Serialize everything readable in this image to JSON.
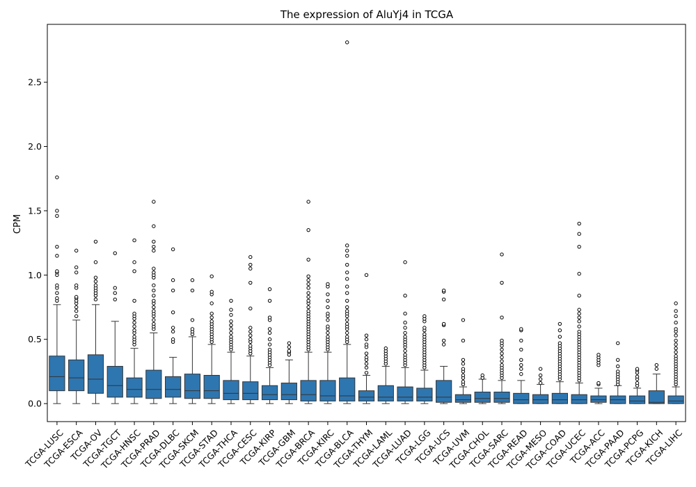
{
  "chart_data": {
    "type": "box",
    "title": "The expression of AluYj4 in TCGA",
    "xlabel": "",
    "ylabel": "CPM",
    "ylim": [
      -0.14,
      2.95
    ],
    "yticks": [
      0.0,
      0.5,
      1.0,
      1.5,
      2.0,
      2.5
    ],
    "ytick_labels": [
      "0.0",
      "0.5",
      "1.0",
      "1.5",
      "2.0",
      "2.5"
    ],
    "grid": false,
    "box_color": "#2e76b0",
    "line_color": "#333333",
    "categories": [
      "TCGA-LUSC",
      "TCGA-ESCA",
      "TCGA-OV",
      "TCGA-TGCT",
      "TCGA-HNSC",
      "TCGA-PRAD",
      "TCGA-DLBC",
      "TCGA-SKCM",
      "TCGA-STAD",
      "TCGA-THCA",
      "TCGA-CESC",
      "TCGA-KIRP",
      "TCGA-GBM",
      "TCGA-BRCA",
      "TCGA-KIRC",
      "TCGA-BLCA",
      "TCGA-THYM",
      "TCGA-LAML",
      "TCGA-LUAD",
      "TCGA-LGG",
      "TCGA-UCS",
      "TCGA-UVM",
      "TCGA-CHOL",
      "TCGA-SARC",
      "TCGA-READ",
      "TCGA-MESO",
      "TCGA-COAD",
      "TCGA-UCEC",
      "TCGA-ACC",
      "TCGA-PAAD",
      "TCGA-PCPG",
      "TCGA-KICH",
      "TCGA-LIHC"
    ],
    "boxes": [
      {
        "whislo": 0.0,
        "q1": 0.1,
        "med": 0.21,
        "q3": 0.37,
        "whishi": 0.77,
        "fliers": [
          0.8,
          0.82,
          0.86,
          0.9,
          0.92,
          1.0,
          1.02,
          1.03,
          1.15,
          1.22,
          1.46,
          1.5,
          1.76
        ]
      },
      {
        "whislo": 0.0,
        "q1": 0.1,
        "med": 0.2,
        "q3": 0.34,
        "whishi": 0.65,
        "fliers": [
          0.68,
          0.72,
          0.75,
          0.78,
          0.8,
          0.82,
          0.83,
          0.9,
          0.92,
          1.02,
          1.06,
          1.19
        ]
      },
      {
        "whislo": 0.0,
        "q1": 0.08,
        "med": 0.19,
        "q3": 0.38,
        "whishi": 0.77,
        "fliers": [
          0.81,
          0.84,
          0.86,
          0.88,
          0.9,
          0.92,
          0.95,
          0.98,
          1.1,
          1.26
        ]
      },
      {
        "whislo": 0.0,
        "q1": 0.05,
        "med": 0.14,
        "q3": 0.29,
        "whishi": 0.64,
        "fliers": [
          0.81,
          0.86,
          0.9,
          1.17
        ]
      },
      {
        "whislo": 0.0,
        "q1": 0.05,
        "med": 0.11,
        "q3": 0.2,
        "whishi": 0.43,
        "fliers": [
          0.46,
          0.48,
          0.5,
          0.52,
          0.55,
          0.57,
          0.6,
          0.63,
          0.66,
          0.68,
          0.7,
          0.8,
          1.03,
          1.1,
          1.27
        ]
      },
      {
        "whislo": 0.0,
        "q1": 0.04,
        "med": 0.11,
        "q3": 0.26,
        "whishi": 0.55,
        "fliers": [
          0.58,
          0.6,
          0.62,
          0.65,
          0.68,
          0.7,
          0.72,
          0.75,
          0.78,
          0.8,
          0.84,
          0.88,
          0.92,
          0.98,
          1.0,
          1.02,
          1.05,
          1.19,
          1.22,
          1.26,
          1.38,
          1.57
        ]
      },
      {
        "whislo": 0.0,
        "q1": 0.05,
        "med": 0.11,
        "q3": 0.21,
        "whishi": 0.36,
        "fliers": [
          0.48,
          0.5,
          0.56,
          0.59,
          0.71,
          0.88,
          0.96,
          1.2
        ]
      },
      {
        "whislo": 0.0,
        "q1": 0.04,
        "med": 0.1,
        "q3": 0.23,
        "whishi": 0.52,
        "fliers": [
          0.54,
          0.56,
          0.58,
          0.65,
          0.88,
          0.96
        ]
      },
      {
        "whislo": 0.0,
        "q1": 0.04,
        "med": 0.1,
        "q3": 0.22,
        "whishi": 0.46,
        "fliers": [
          0.48,
          0.5,
          0.52,
          0.54,
          0.56,
          0.58,
          0.6,
          0.62,
          0.64,
          0.67,
          0.7,
          0.78,
          0.85,
          0.87,
          0.99
        ]
      },
      {
        "whislo": 0.0,
        "q1": 0.03,
        "med": 0.08,
        "q3": 0.18,
        "whishi": 0.4,
        "fliers": [
          0.42,
          0.44,
          0.46,
          0.48,
          0.5,
          0.52,
          0.55,
          0.58,
          0.61,
          0.64,
          0.69,
          0.73,
          0.8
        ]
      },
      {
        "whislo": 0.0,
        "q1": 0.03,
        "med": 0.08,
        "q3": 0.17,
        "whishi": 0.37,
        "fliers": [
          0.39,
          0.41,
          0.43,
          0.45,
          0.48,
          0.5,
          0.53,
          0.56,
          0.59,
          0.74,
          0.94,
          1.05,
          1.08,
          1.14
        ]
      },
      {
        "whislo": 0.0,
        "q1": 0.03,
        "med": 0.07,
        "q3": 0.14,
        "whishi": 0.28,
        "fliers": [
          0.3,
          0.32,
          0.34,
          0.36,
          0.38,
          0.4,
          0.42,
          0.46,
          0.5,
          0.55,
          0.58,
          0.65,
          0.67,
          0.8,
          0.89
        ]
      },
      {
        "whislo": 0.0,
        "q1": 0.03,
        "med": 0.07,
        "q3": 0.16,
        "whishi": 0.34,
        "fliers": [
          0.38,
          0.4,
          0.41,
          0.44,
          0.47
        ]
      },
      {
        "whislo": 0.0,
        "q1": 0.02,
        "med": 0.07,
        "q3": 0.18,
        "whishi": 0.4,
        "fliers": [
          0.42,
          0.44,
          0.46,
          0.48,
          0.5,
          0.52,
          0.54,
          0.56,
          0.58,
          0.6,
          0.62,
          0.64,
          0.66,
          0.68,
          0.7,
          0.72,
          0.75,
          0.78,
          0.8,
          0.83,
          0.86,
          0.9,
          0.93,
          0.96,
          0.99,
          1.12,
          1.35,
          1.57
        ]
      },
      {
        "whislo": 0.0,
        "q1": 0.02,
        "med": 0.06,
        "q3": 0.18,
        "whishi": 0.4,
        "fliers": [
          0.42,
          0.44,
          0.46,
          0.48,
          0.5,
          0.52,
          0.55,
          0.58,
          0.6,
          0.65,
          0.68,
          0.7,
          0.75,
          0.8,
          0.85,
          0.91,
          0.93
        ]
      },
      {
        "whislo": 0.0,
        "q1": 0.02,
        "med": 0.06,
        "q3": 0.2,
        "whishi": 0.46,
        "fliers": [
          0.48,
          0.5,
          0.52,
          0.55,
          0.58,
          0.6,
          0.62,
          0.65,
          0.68,
          0.7,
          0.72,
          0.75,
          0.8,
          0.86,
          0.91,
          0.97,
          1.02,
          1.08,
          1.15,
          1.19,
          1.23,
          2.81
        ]
      },
      {
        "whislo": 0.0,
        "q1": 0.02,
        "med": 0.05,
        "q3": 0.1,
        "whishi": 0.22,
        "fliers": [
          0.24,
          0.28,
          0.31,
          0.34,
          0.36,
          0.39,
          0.44,
          0.46,
          0.5,
          0.53,
          1.0
        ]
      },
      {
        "whislo": 0.0,
        "q1": 0.02,
        "med": 0.05,
        "q3": 0.14,
        "whishi": 0.29,
        "fliers": [
          0.31,
          0.33,
          0.35,
          0.37,
          0.39,
          0.41,
          0.43
        ]
      },
      {
        "whislo": 0.0,
        "q1": 0.02,
        "med": 0.05,
        "q3": 0.13,
        "whishi": 0.28,
        "fliers": [
          0.3,
          0.32,
          0.34,
          0.36,
          0.38,
          0.41,
          0.44,
          0.46,
          0.48,
          0.5,
          0.52,
          0.55,
          0.59,
          0.63,
          0.7,
          0.84,
          1.1
        ]
      },
      {
        "whislo": 0.0,
        "q1": 0.02,
        "med": 0.05,
        "q3": 0.12,
        "whishi": 0.26,
        "fliers": [
          0.28,
          0.3,
          0.32,
          0.34,
          0.36,
          0.38,
          0.4,
          0.42,
          0.44,
          0.46,
          0.48,
          0.5,
          0.52,
          0.54,
          0.57,
          0.59,
          0.64,
          0.66,
          0.68
        ]
      },
      {
        "whislo": 0.0,
        "q1": 0.01,
        "med": 0.05,
        "q3": 0.18,
        "whishi": 0.29,
        "fliers": [
          0.46,
          0.49,
          0.61,
          0.62,
          0.81,
          0.87,
          0.88
        ]
      },
      {
        "whislo": 0.0,
        "q1": 0.01,
        "med": 0.03,
        "q3": 0.07,
        "whishi": 0.13,
        "fliers": [
          0.15,
          0.17,
          0.2,
          0.22,
          0.25,
          0.27,
          0.31,
          0.34,
          0.49,
          0.65
        ]
      },
      {
        "whislo": 0.0,
        "q1": 0.01,
        "med": 0.04,
        "q3": 0.09,
        "whishi": 0.19,
        "fliers": [
          0.2,
          0.22
        ]
      },
      {
        "whislo": 0.0,
        "q1": 0.01,
        "med": 0.04,
        "q3": 0.09,
        "whishi": 0.18,
        "fliers": [
          0.2,
          0.22,
          0.24,
          0.26,
          0.28,
          0.3,
          0.33,
          0.36,
          0.39,
          0.42,
          0.45,
          0.47,
          0.49,
          0.67,
          0.94,
          1.16
        ]
      },
      {
        "whislo": 0.0,
        "q1": 0.0,
        "med": 0.03,
        "q3": 0.08,
        "whishi": 0.18,
        "fliers": [
          0.23,
          0.27,
          0.3,
          0.34,
          0.42,
          0.49,
          0.57,
          0.58
        ]
      },
      {
        "whislo": 0.0,
        "q1": 0.0,
        "med": 0.03,
        "q3": 0.07,
        "whishi": 0.15,
        "fliers": [
          0.16,
          0.19,
          0.22,
          0.27
        ]
      },
      {
        "whislo": 0.0,
        "q1": 0.0,
        "med": 0.03,
        "q3": 0.08,
        "whishi": 0.17,
        "fliers": [
          0.19,
          0.21,
          0.23,
          0.25,
          0.27,
          0.29,
          0.31,
          0.33,
          0.35,
          0.37,
          0.39,
          0.41,
          0.43,
          0.45,
          0.47,
          0.52,
          0.57,
          0.62
        ]
      },
      {
        "whislo": 0.0,
        "q1": 0.0,
        "med": 0.03,
        "q3": 0.07,
        "whishi": 0.16,
        "fliers": [
          0.18,
          0.2,
          0.22,
          0.24,
          0.26,
          0.28,
          0.3,
          0.32,
          0.34,
          0.36,
          0.38,
          0.4,
          0.42,
          0.44,
          0.46,
          0.48,
          0.5,
          0.52,
          0.54,
          0.56,
          0.6,
          0.64,
          0.67,
          0.7,
          0.73,
          0.84,
          1.01,
          1.22,
          1.32,
          1.4
        ]
      },
      {
        "whislo": 0.0,
        "q1": 0.01,
        "med": 0.03,
        "q3": 0.06,
        "whishi": 0.12,
        "fliers": [
          0.15,
          0.16,
          0.3,
          0.32,
          0.34,
          0.36,
          0.38
        ]
      },
      {
        "whislo": 0.0,
        "q1": 0.0,
        "med": 0.03,
        "q3": 0.06,
        "whishi": 0.14,
        "fliers": [
          0.15,
          0.17,
          0.19,
          0.21,
          0.23,
          0.25,
          0.29,
          0.34,
          0.47
        ]
      },
      {
        "whislo": 0.0,
        "q1": 0.0,
        "med": 0.02,
        "q3": 0.06,
        "whishi": 0.12,
        "fliers": [
          0.14,
          0.16,
          0.19,
          0.21,
          0.24,
          0.26,
          0.27
        ]
      },
      {
        "whislo": 0.0,
        "q1": 0.0,
        "med": 0.01,
        "q3": 0.1,
        "whishi": 0.23,
        "fliers": [
          0.27,
          0.3
        ]
      },
      {
        "whislo": 0.0,
        "q1": 0.0,
        "med": 0.02,
        "q3": 0.06,
        "whishi": 0.13,
        "fliers": [
          0.15,
          0.17,
          0.19,
          0.21,
          0.23,
          0.25,
          0.27,
          0.29,
          0.31,
          0.33,
          0.35,
          0.37,
          0.4,
          0.43,
          0.46,
          0.49,
          0.53,
          0.56,
          0.58,
          0.63,
          0.68,
          0.72,
          0.78
        ]
      }
    ]
  }
}
